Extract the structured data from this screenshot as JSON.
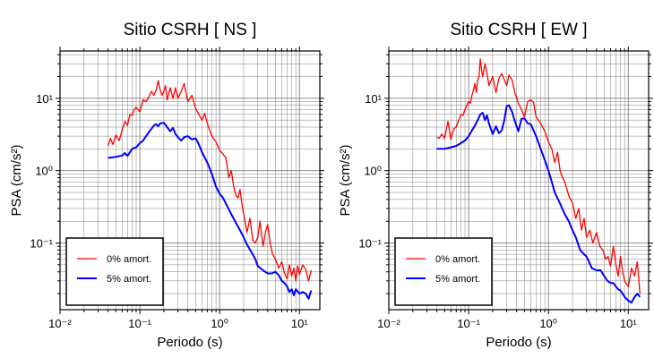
{
  "figure": {
    "panels": [
      {
        "title": "Sitio CSRH [ NS ]"
      },
      {
        "title": "Sitio CSRH [ EW ]"
      }
    ]
  },
  "colors": {
    "undamped": "#ff0000",
    "damped": "#0000ff",
    "grid": "#808080",
    "frame": "#000000"
  },
  "chart_data": [
    {
      "type": "line",
      "title": "Sitio CSRH [ NS ]",
      "xlabel": "Periodo (s)",
      "ylabel": "PSA (cm/s²)",
      "x_scale": "log",
      "y_scale": "log",
      "xlim": [
        0.01,
        18
      ],
      "ylim": [
        0.012,
        45
      ],
      "x_ticks": [
        {
          "value": 0.01,
          "label": "10⁻²"
        },
        {
          "value": 0.1,
          "label": "10⁻¹"
        },
        {
          "value": 1,
          "label": "10⁰"
        },
        {
          "value": 10,
          "label": "10¹"
        }
      ],
      "y_ticks": [
        {
          "value": 0.1,
          "label": "10⁻¹"
        },
        {
          "value": 1,
          "label": "10⁰"
        },
        {
          "value": 10,
          "label": "10¹"
        }
      ],
      "grid": true,
      "legend": {
        "position": "bottom-left",
        "entries": [
          "0% amort.",
          "5% amort."
        ]
      },
      "series": [
        {
          "name": "0% amort.",
          "color": "#ff0000",
          "x": [
            0.04,
            0.043,
            0.046,
            0.05,
            0.055,
            0.06,
            0.065,
            0.07,
            0.075,
            0.08,
            0.085,
            0.09,
            0.1,
            0.11,
            0.12,
            0.13,
            0.14,
            0.15,
            0.16,
            0.17,
            0.18,
            0.19,
            0.2,
            0.21,
            0.22,
            0.24,
            0.26,
            0.28,
            0.3,
            0.33,
            0.36,
            0.4,
            0.45,
            0.5,
            0.55,
            0.6,
            0.65,
            0.7,
            0.8,
            0.9,
            1.0,
            1.1,
            1.2,
            1.3,
            1.4,
            1.5,
            1.6,
            1.7,
            1.8,
            1.9,
            2.0,
            2.2,
            2.4,
            2.6,
            2.8,
            3.0,
            3.2,
            3.5,
            3.8,
            4.0,
            4.3,
            4.6,
            5.0,
            5.5,
            6.0,
            6.5,
            7.0,
            7.5,
            8.0,
            8.5,
            9.0,
            9.5,
            10.0,
            11.0,
            12.0,
            13.0,
            14.0
          ],
          "values": [
            2.2,
            2.8,
            2.3,
            3.1,
            2.6,
            3.6,
            4.8,
            4.2,
            6.0,
            5.8,
            7.0,
            7.5,
            6.5,
            9.5,
            9.0,
            10.5,
            12.5,
            11.0,
            13.0,
            17.5,
            13.0,
            11.0,
            12.5,
            15.0,
            9.5,
            14.0,
            10.0,
            14.0,
            10.0,
            12.5,
            16.0,
            9.0,
            11.0,
            7.2,
            6.0,
            5.0,
            6.2,
            4.5,
            3.0,
            2.5,
            1.9,
            1.7,
            1.5,
            0.8,
            1.0,
            0.6,
            0.45,
            0.42,
            0.55,
            0.35,
            0.25,
            0.14,
            0.22,
            0.11,
            0.1,
            0.12,
            0.2,
            0.09,
            0.15,
            0.18,
            0.1,
            0.07,
            0.06,
            0.045,
            0.055,
            0.038,
            0.032,
            0.05,
            0.035,
            0.045,
            0.03,
            0.048,
            0.037,
            0.05,
            0.043,
            0.03,
            0.042
          ]
        },
        {
          "name": "5% amort.",
          "color": "#0000ff",
          "x": [
            0.04,
            0.05,
            0.06,
            0.065,
            0.07,
            0.08,
            0.09,
            0.1,
            0.11,
            0.12,
            0.13,
            0.14,
            0.15,
            0.16,
            0.17,
            0.18,
            0.2,
            0.22,
            0.24,
            0.26,
            0.28,
            0.3,
            0.33,
            0.36,
            0.4,
            0.45,
            0.5,
            0.55,
            0.6,
            0.7,
            0.8,
            0.9,
            1.0,
            1.1,
            1.2,
            1.4,
            1.6,
            1.8,
            2.0,
            2.2,
            2.5,
            2.8,
            3.0,
            3.5,
            4.0,
            4.5,
            5.0,
            5.5,
            6.0,
            6.5,
            7.0,
            7.5,
            8.0,
            8.5,
            9.0,
            10.0,
            11.0,
            12.0,
            13.0,
            14.0
          ],
          "values": [
            1.5,
            1.55,
            1.62,
            1.75,
            1.6,
            2.0,
            2.1,
            2.4,
            2.6,
            3.0,
            3.4,
            3.8,
            4.2,
            4.4,
            4.1,
            4.5,
            4.6,
            4.0,
            3.5,
            3.9,
            3.2,
            2.9,
            2.6,
            2.9,
            3.0,
            2.7,
            2.8,
            2.3,
            1.8,
            1.3,
            0.9,
            0.6,
            0.48,
            0.42,
            0.35,
            0.25,
            0.19,
            0.15,
            0.12,
            0.095,
            0.075,
            0.06,
            0.048,
            0.042,
            0.038,
            0.038,
            0.04,
            0.036,
            0.03,
            0.028,
            0.025,
            0.021,
            0.023,
            0.019,
            0.023,
            0.02,
            0.021,
            0.02,
            0.017,
            0.022
          ]
        }
      ]
    },
    {
      "type": "line",
      "title": "Sitio CSRH [ EW ]",
      "xlabel": "Periodo (s)",
      "ylabel": "PSA (cm/s²)",
      "x_scale": "log",
      "y_scale": "log",
      "xlim": [
        0.01,
        18
      ],
      "ylim": [
        0.012,
        45
      ],
      "x_ticks": [
        {
          "value": 0.01,
          "label": "10⁻²"
        },
        {
          "value": 0.1,
          "label": "10⁻¹"
        },
        {
          "value": 1,
          "label": "10⁰"
        },
        {
          "value": 10,
          "label": "10¹"
        }
      ],
      "y_ticks": [
        {
          "value": 0.1,
          "label": "10⁻¹"
        },
        {
          "value": 1,
          "label": "10⁰"
        },
        {
          "value": 10,
          "label": "10¹"
        }
      ],
      "grid": true,
      "legend": {
        "position": "bottom-left",
        "entries": [
          "0% amort.",
          "5% amort."
        ]
      },
      "series": [
        {
          "name": "0% amort.",
          "color": "#ff0000",
          "x": [
            0.04,
            0.043,
            0.046,
            0.05,
            0.055,
            0.06,
            0.065,
            0.07,
            0.075,
            0.08,
            0.085,
            0.09,
            0.1,
            0.105,
            0.11,
            0.115,
            0.12,
            0.125,
            0.13,
            0.135,
            0.14,
            0.145,
            0.15,
            0.16,
            0.17,
            0.18,
            0.2,
            0.22,
            0.24,
            0.26,
            0.28,
            0.3,
            0.32,
            0.35,
            0.38,
            0.42,
            0.46,
            0.5,
            0.55,
            0.6,
            0.65,
            0.7,
            0.8,
            0.9,
            1.0,
            1.1,
            1.2,
            1.3,
            1.4,
            1.5,
            1.6,
            1.8,
            2.0,
            2.2,
            2.4,
            2.6,
            2.8,
            3.0,
            3.3,
            3.6,
            4.0,
            4.4,
            4.8,
            5.2,
            5.6,
            6.0,
            6.5,
            7.0,
            7.5,
            8.0,
            8.5,
            9.0,
            10.0,
            11.0,
            12.0,
            13.0,
            14.0
          ],
          "values": [
            2.9,
            2.8,
            3.2,
            2.8,
            4.8,
            2.7,
            3.8,
            4.0,
            5.0,
            6.0,
            5.8,
            7.0,
            9.0,
            8.5,
            11.0,
            13.0,
            16.0,
            12.0,
            18.0,
            20.0,
            35.0,
            25.0,
            20.0,
            30.0,
            22.0,
            15.0,
            20.0,
            12.0,
            19.0,
            22.0,
            18.0,
            15.0,
            21.0,
            18.0,
            12.0,
            8.5,
            7.0,
            5.5,
            9.0,
            9.5,
            8.8,
            5.5,
            4.5,
            3.5,
            2.5,
            2.0,
            1.3,
            1.8,
            1.0,
            0.8,
            0.7,
            0.45,
            0.36,
            0.22,
            0.3,
            0.15,
            0.22,
            0.12,
            0.15,
            0.1,
            0.14,
            0.09,
            0.08,
            0.06,
            0.065,
            0.048,
            0.09,
            0.05,
            0.035,
            0.065,
            0.04,
            0.03,
            0.025,
            0.045,
            0.035,
            0.055,
            0.02
          ]
        },
        {
          "name": "5% amort.",
          "color": "#0000ff",
          "x": [
            0.04,
            0.05,
            0.06,
            0.07,
            0.08,
            0.09,
            0.1,
            0.11,
            0.12,
            0.13,
            0.14,
            0.15,
            0.16,
            0.17,
            0.18,
            0.2,
            0.22,
            0.24,
            0.26,
            0.28,
            0.3,
            0.32,
            0.35,
            0.38,
            0.42,
            0.46,
            0.5,
            0.55,
            0.6,
            0.7,
            0.8,
            0.9,
            1.0,
            1.1,
            1.2,
            1.4,
            1.6,
            1.8,
            2.0,
            2.2,
            2.5,
            2.8,
            3.0,
            3.5,
            4.0,
            4.5,
            5.0,
            5.5,
            6.0,
            6.5,
            7.0,
            7.5,
            8.0,
            8.5,
            9.0,
            10.0,
            11.0,
            12.0,
            13.0,
            14.0
          ],
          "values": [
            2.0,
            2.0,
            2.1,
            2.2,
            2.4,
            2.6,
            3.0,
            3.6,
            4.2,
            5.0,
            6.0,
            6.3,
            5.0,
            5.8,
            4.5,
            3.2,
            4.1,
            3.3,
            3.6,
            5.0,
            7.8,
            8.0,
            6.5,
            4.8,
            3.5,
            5.2,
            5.3,
            4.5,
            4.4,
            3.0,
            2.0,
            1.4,
            1.0,
            0.7,
            0.5,
            0.35,
            0.25,
            0.2,
            0.15,
            0.12,
            0.08,
            0.07,
            0.065,
            0.045,
            0.042,
            0.042,
            0.035,
            0.03,
            0.028,
            0.028,
            0.025,
            0.023,
            0.022,
            0.02,
            0.018,
            0.016,
            0.015,
            0.018,
            0.02,
            0.018
          ]
        }
      ]
    }
  ]
}
